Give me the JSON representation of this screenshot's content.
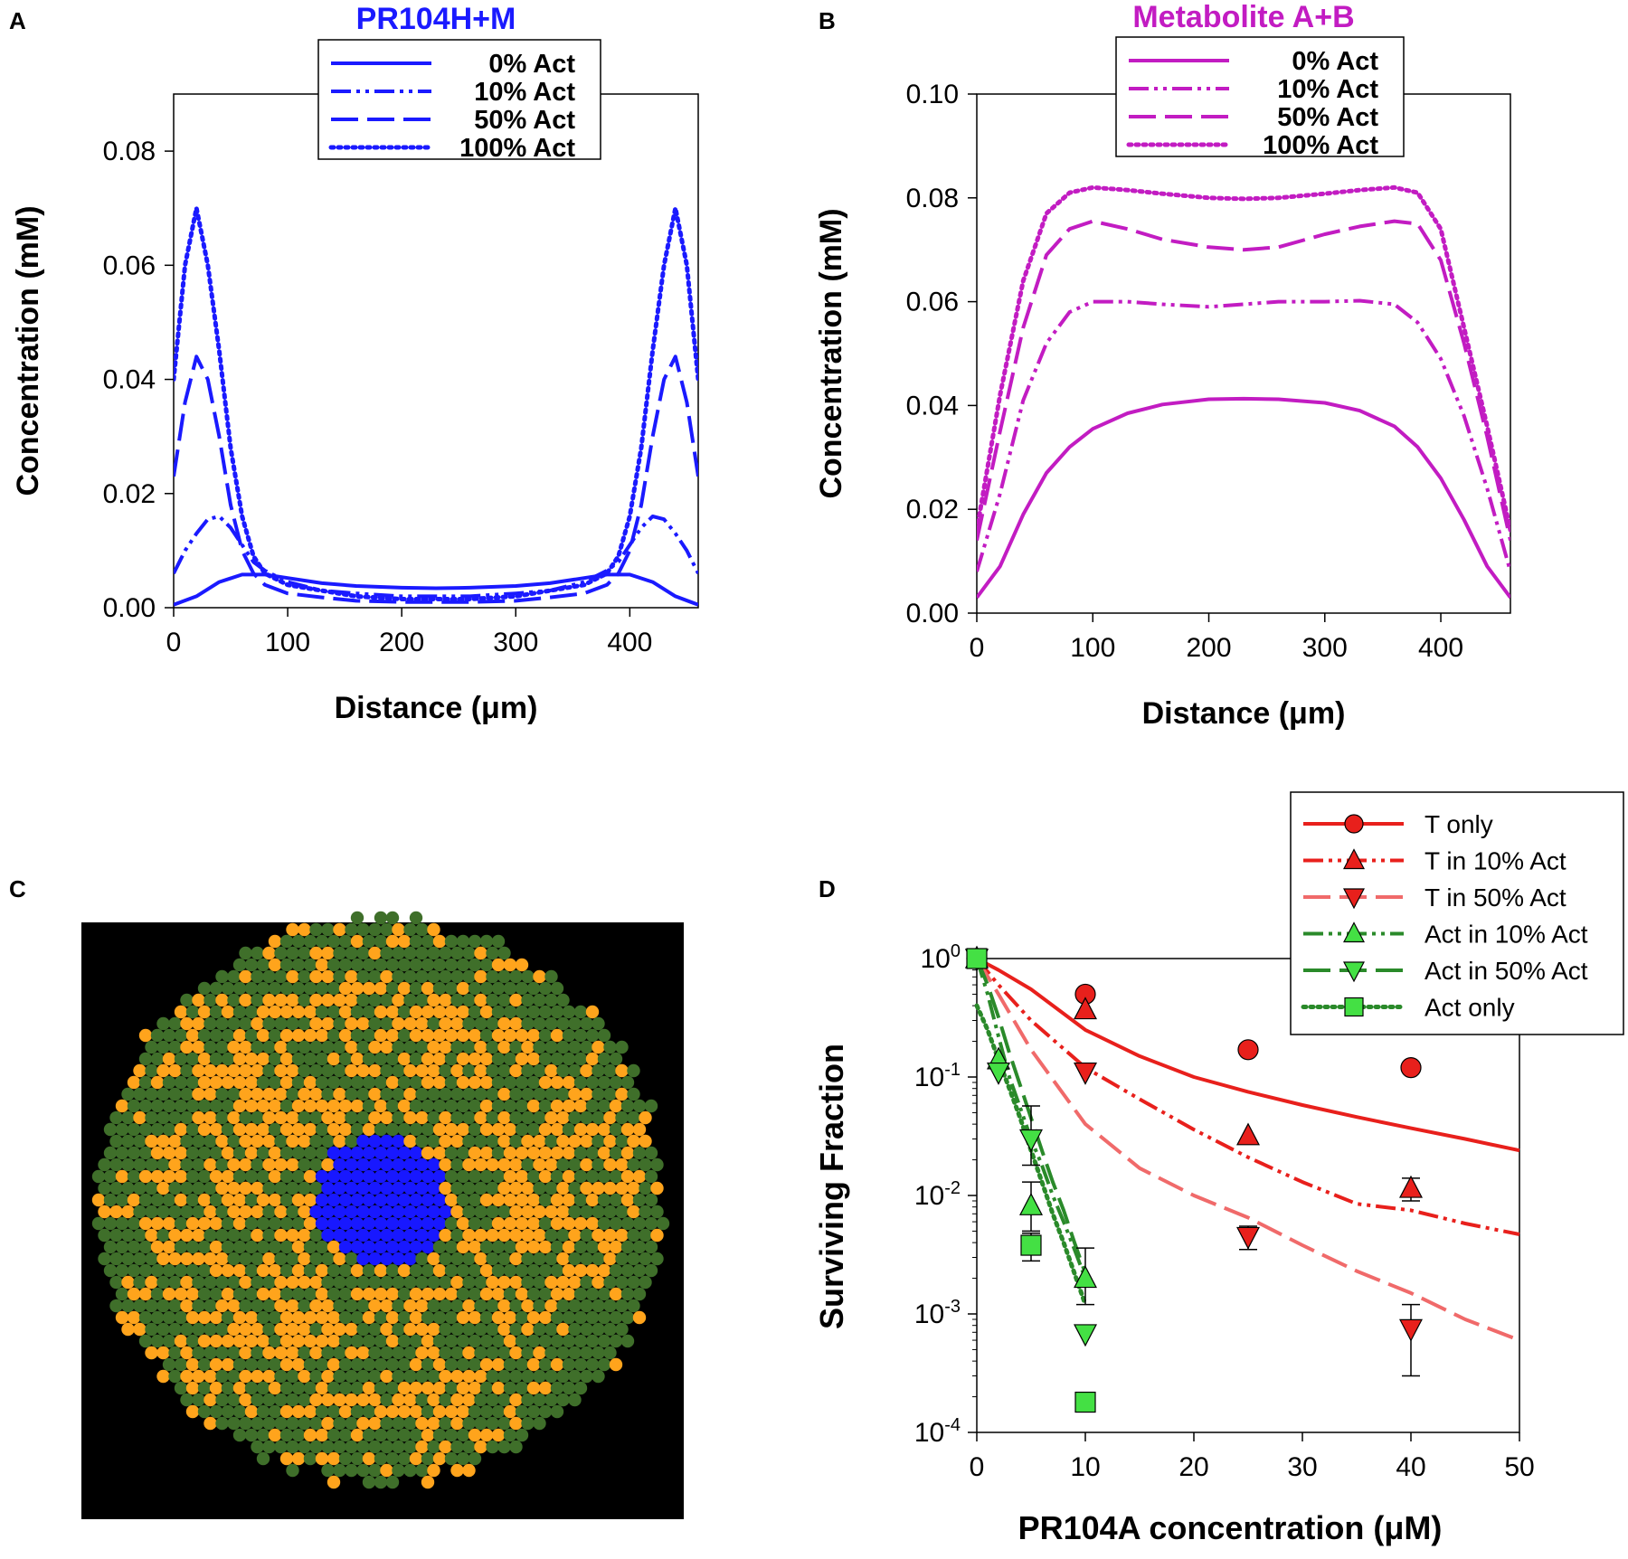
{
  "panel_labels": {
    "a": "A",
    "b": "B",
    "c": "C",
    "d": "D"
  },
  "colors": {
    "blue": "#1a1aff",
    "magenta": "#c21cc2",
    "red": "#e8201c",
    "red_light": "#f06a6a",
    "green": "#2a8a2a",
    "green_light": "#4cd44c",
    "green_marker": "#44e044",
    "hex_green": "#3f6f2a",
    "hex_orange": "#ffa41c",
    "hex_blue": "#1818ff"
  },
  "chart_data": [
    {
      "id": "A",
      "type": "line",
      "title": "PR104H+M",
      "xlabel": "Distance (μm)",
      "ylabel": "Concentration (mM)",
      "xlim": [
        0,
        460
      ],
      "ylim": [
        0,
        0.09
      ],
      "xticks": [
        0,
        100,
        200,
        300,
        400
      ],
      "xtick_labels": [
        "0",
        "100",
        "200",
        "300",
        "400"
      ],
      "yticks": [
        0,
        0.02,
        0.04,
        0.06,
        0.08
      ],
      "ytick_labels": [
        "0.00",
        "0.02",
        "0.04",
        "0.06",
        "0.08"
      ],
      "legend": "top-center",
      "series": [
        {
          "name": "0% Act",
          "dash": "solid",
          "x": [
            0,
            20,
            40,
            60,
            80,
            100,
            130,
            160,
            200,
            230,
            260,
            300,
            330,
            360,
            380,
            400,
            420,
            440,
            460
          ],
          "y": [
            0.0005,
            0.002,
            0.0045,
            0.0058,
            0.0058,
            0.0052,
            0.0043,
            0.0038,
            0.0035,
            0.0034,
            0.0035,
            0.0038,
            0.0043,
            0.0052,
            0.0058,
            0.0058,
            0.0045,
            0.002,
            0.0005
          ]
        },
        {
          "name": "10% Act",
          "dash": "dashdotdot",
          "x": [
            0,
            10,
            20,
            30,
            40,
            50,
            60,
            70,
            80,
            100,
            130,
            160,
            200,
            230,
            260,
            300,
            330,
            360,
            380,
            390,
            400,
            410,
            420,
            430,
            440,
            450,
            460
          ],
          "y": [
            0.006,
            0.01,
            0.013,
            0.0155,
            0.016,
            0.014,
            0.011,
            0.008,
            0.0065,
            0.0045,
            0.003,
            0.0025,
            0.002,
            0.002,
            0.002,
            0.0025,
            0.003,
            0.0045,
            0.0065,
            0.008,
            0.011,
            0.014,
            0.016,
            0.0155,
            0.013,
            0.01,
            0.006
          ]
        },
        {
          "name": "50% Act",
          "dash": "longdash",
          "x": [
            0,
            10,
            20,
            30,
            40,
            50,
            60,
            70,
            80,
            100,
            130,
            160,
            200,
            230,
            260,
            300,
            330,
            360,
            380,
            390,
            400,
            410,
            420,
            430,
            440,
            450,
            460
          ],
          "y": [
            0.023,
            0.036,
            0.044,
            0.04,
            0.03,
            0.018,
            0.01,
            0.006,
            0.004,
            0.0025,
            0.0018,
            0.0012,
            0.001,
            0.001,
            0.001,
            0.0012,
            0.0018,
            0.0025,
            0.004,
            0.006,
            0.01,
            0.018,
            0.03,
            0.04,
            0.044,
            0.036,
            0.023
          ]
        },
        {
          "name": "100% Act",
          "dash": "dotted",
          "x": [
            0,
            10,
            20,
            30,
            40,
            50,
            60,
            70,
            80,
            100,
            130,
            160,
            200,
            230,
            260,
            300,
            330,
            360,
            380,
            390,
            400,
            410,
            420,
            430,
            440,
            450,
            460
          ],
          "y": [
            0.04,
            0.06,
            0.07,
            0.06,
            0.045,
            0.028,
            0.016,
            0.009,
            0.006,
            0.004,
            0.003,
            0.002,
            0.0015,
            0.0015,
            0.0015,
            0.002,
            0.003,
            0.004,
            0.006,
            0.009,
            0.016,
            0.028,
            0.045,
            0.06,
            0.07,
            0.06,
            0.04
          ]
        }
      ]
    },
    {
      "id": "B",
      "type": "line",
      "title": "Metabolite A+B",
      "xlabel": "Distance (μm)",
      "ylabel": "Concentration (mM)",
      "xlim": [
        0,
        460
      ],
      "ylim": [
        0,
        0.1
      ],
      "xticks": [
        0,
        100,
        200,
        300,
        400
      ],
      "xtick_labels": [
        "0",
        "100",
        "200",
        "300",
        "400"
      ],
      "yticks": [
        0,
        0.02,
        0.04,
        0.06,
        0.08,
        0.1
      ],
      "ytick_labels": [
        "0.00",
        "0.02",
        "0.04",
        "0.06",
        "0.08",
        "0.10"
      ],
      "legend": "top-center",
      "series": [
        {
          "name": "0% Act",
          "dash": "solid",
          "x": [
            0,
            20,
            40,
            60,
            80,
            100,
            130,
            160,
            200,
            230,
            260,
            300,
            330,
            360,
            380,
            400,
            420,
            440,
            460
          ],
          "y": [
            0.003,
            0.009,
            0.019,
            0.027,
            0.032,
            0.0355,
            0.0385,
            0.0402,
            0.0412,
            0.0413,
            0.0412,
            0.0405,
            0.039,
            0.036,
            0.032,
            0.026,
            0.018,
            0.009,
            0.003
          ]
        },
        {
          "name": "10% Act",
          "dash": "dashdotdot",
          "x": [
            0,
            20,
            40,
            60,
            80,
            100,
            130,
            160,
            200,
            230,
            260,
            300,
            330,
            360,
            380,
            400,
            420,
            440,
            460
          ],
          "y": [
            0.008,
            0.023,
            0.041,
            0.052,
            0.058,
            0.06,
            0.06,
            0.0595,
            0.059,
            0.0595,
            0.06,
            0.06,
            0.0602,
            0.0595,
            0.056,
            0.049,
            0.038,
            0.024,
            0.008
          ]
        },
        {
          "name": "50% Act",
          "dash": "longdash",
          "x": [
            0,
            20,
            40,
            60,
            80,
            100,
            130,
            160,
            200,
            230,
            260,
            300,
            330,
            360,
            380,
            400,
            420,
            440,
            460
          ],
          "y": [
            0.014,
            0.035,
            0.055,
            0.069,
            0.074,
            0.0755,
            0.074,
            0.072,
            0.0705,
            0.07,
            0.0705,
            0.073,
            0.0745,
            0.0755,
            0.075,
            0.068,
            0.052,
            0.034,
            0.014
          ]
        },
        {
          "name": "100% Act",
          "dash": "dotted",
          "x": [
            0,
            20,
            40,
            60,
            80,
            100,
            130,
            160,
            200,
            230,
            260,
            300,
            330,
            360,
            380,
            400,
            420,
            440,
            460
          ],
          "y": [
            0.016,
            0.042,
            0.064,
            0.077,
            0.081,
            0.082,
            0.0815,
            0.0808,
            0.08,
            0.0798,
            0.08,
            0.0808,
            0.0815,
            0.082,
            0.081,
            0.074,
            0.055,
            0.036,
            0.016
          ]
        }
      ]
    },
    {
      "id": "D",
      "type": "scatter",
      "xlabel": "PR104A concentration (μM)",
      "ylabel": "Surviving Fraction",
      "xlim": [
        0,
        50
      ],
      "ylim": [
        0.0001,
        1
      ],
      "yscale": "log",
      "xticks": [
        0,
        10,
        20,
        30,
        40,
        50
      ],
      "xtick_labels": [
        "0",
        "10",
        "20",
        "30",
        "40",
        "50"
      ],
      "ytick_base": "10",
      "ytick_exps": [
        "0",
        "-1",
        "-2",
        "-3",
        "-4"
      ],
      "legend": "top-right",
      "series": [
        {
          "name": "T only",
          "marker": "circle",
          "color": "red",
          "dash": "solid",
          "points_x": [
            0,
            10,
            25,
            40
          ],
          "points_y": [
            1.0,
            0.5,
            0.17,
            0.12
          ],
          "err_hi": [
            null,
            null,
            null,
            null
          ],
          "err_lo": [
            null,
            null,
            null,
            null
          ],
          "curve_x": [
            0,
            2,
            5,
            10,
            15,
            20,
            25,
            30,
            35,
            40,
            45,
            50
          ],
          "curve_y": [
            1.0,
            0.8,
            0.55,
            0.25,
            0.15,
            0.1,
            0.075,
            0.058,
            0.046,
            0.037,
            0.03,
            0.024
          ]
        },
        {
          "name": "T in 10% Act",
          "marker": "triangle-up",
          "color": "red",
          "dash": "dashdotdot",
          "points_x": [
            0,
            10,
            25,
            40
          ],
          "points_y": [
            1.0,
            0.37,
            0.032,
            0.0115
          ],
          "err_hi": [
            null,
            null,
            null,
            0.014
          ],
          "err_lo": [
            null,
            null,
            null,
            0.009
          ],
          "curve_x": [
            0,
            2,
            5,
            10,
            15,
            20,
            25,
            30,
            35,
            40,
            45,
            50
          ],
          "curve_y": [
            1.0,
            0.6,
            0.3,
            0.12,
            0.065,
            0.036,
            0.021,
            0.013,
            0.0085,
            0.0075,
            0.0058,
            0.0047
          ]
        },
        {
          "name": "T in 50% Act",
          "marker": "triangle-down",
          "color": "red",
          "dash": "longdash",
          "points_x": [
            0,
            10,
            25,
            40
          ],
          "points_y": [
            1.0,
            0.11,
            0.0045,
            0.00075
          ],
          "err_hi": [
            null,
            null,
            0.0055,
            0.0012
          ],
          "err_lo": [
            null,
            null,
            0.0035,
            0.0003
          ],
          "curve_x": [
            0,
            2,
            5,
            10,
            15,
            20,
            25,
            30,
            35,
            40,
            45,
            50
          ],
          "curve_y": [
            1.0,
            0.5,
            0.17,
            0.04,
            0.017,
            0.01,
            0.0065,
            0.0038,
            0.0023,
            0.0015,
            0.0009,
            0.0006
          ]
        },
        {
          "name": "Act in 10% Act",
          "marker": "triangle-up",
          "color": "green",
          "dash": "dashdotdot",
          "points_x": [
            0,
            2,
            5,
            10
          ],
          "points_y": [
            1.0,
            0.14,
            0.0082,
            0.002
          ],
          "err_hi": [
            null,
            null,
            0.013,
            0.0036
          ],
          "err_lo": [
            null,
            null,
            0.005,
            0.0012
          ],
          "curve_x": [
            0,
            1,
            2,
            3,
            4,
            5,
            6,
            7,
            8,
            9,
            10
          ],
          "curve_y": [
            1.0,
            0.5,
            0.22,
            0.1,
            0.055,
            0.03,
            0.018,
            0.01,
            0.006,
            0.0035,
            0.002
          ]
        },
        {
          "name": "Act in 50% Act",
          "marker": "triangle-down",
          "color": "green",
          "dash": "longdash",
          "points_x": [
            0,
            2,
            5,
            10
          ],
          "points_y": [
            1.0,
            0.11,
            0.03,
            0.00068
          ],
          "err_hi": [
            null,
            null,
            0.057,
            null
          ],
          "err_lo": [
            null,
            null,
            0.018,
            null
          ],
          "curve_x": [
            0,
            1,
            2,
            3,
            4,
            5,
            6,
            7,
            8,
            9,
            10
          ],
          "curve_y": [
            1.0,
            0.6,
            0.32,
            0.16,
            0.085,
            0.045,
            0.024,
            0.013,
            0.0075,
            0.004,
            0.0022
          ]
        },
        {
          "name": "Act only",
          "marker": "square",
          "color": "green",
          "dash": "dotted",
          "points_x": [
            0,
            5,
            10
          ],
          "points_y": [
            1.0,
            0.0038,
            0.00018
          ],
          "err_hi": [
            null,
            0.0048,
            null
          ],
          "err_lo": [
            null,
            0.0028,
            null
          ],
          "curve_x": [
            0,
            1,
            2,
            3,
            4,
            5,
            6,
            7,
            8,
            9,
            10
          ],
          "curve_y": [
            0.4,
            0.25,
            0.14,
            0.08,
            0.045,
            0.024,
            0.013,
            0.007,
            0.004,
            0.0022,
            0.0012
          ]
        }
      ]
    }
  ]
}
